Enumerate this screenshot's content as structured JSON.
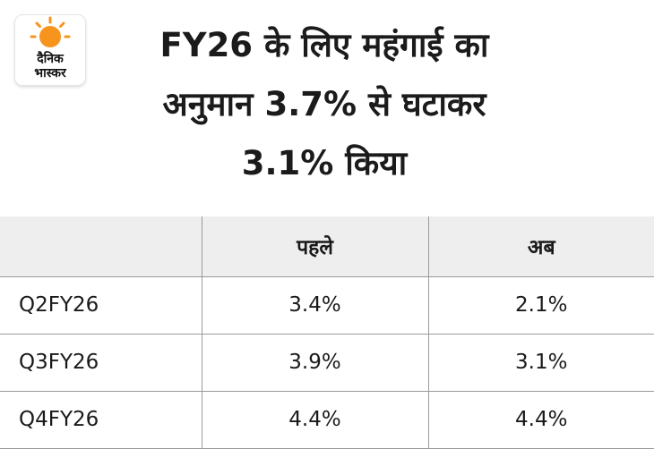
{
  "logo": {
    "line1": "दैनिक",
    "line2": "भास्कर"
  },
  "headline": {
    "line1": "FY26 के लिए महंगाई का",
    "line2": "अनुमान 3.7% से घटाकर",
    "line3": "3.1% किया"
  },
  "table": {
    "headers": [
      "",
      "पहले",
      "अब"
    ],
    "rows": [
      {
        "label": "Q2FY26",
        "before": "3.4%",
        "now": "2.1%"
      },
      {
        "label": "Q3FY26",
        "before": "3.9%",
        "now": "3.1%"
      },
      {
        "label": "Q4FY26",
        "before": "4.4%",
        "now": "4.4%"
      }
    ]
  },
  "colors": {
    "logo_sun": "#f7941d",
    "header_bg": "#eeeeee",
    "border": "#9a9a9a"
  }
}
